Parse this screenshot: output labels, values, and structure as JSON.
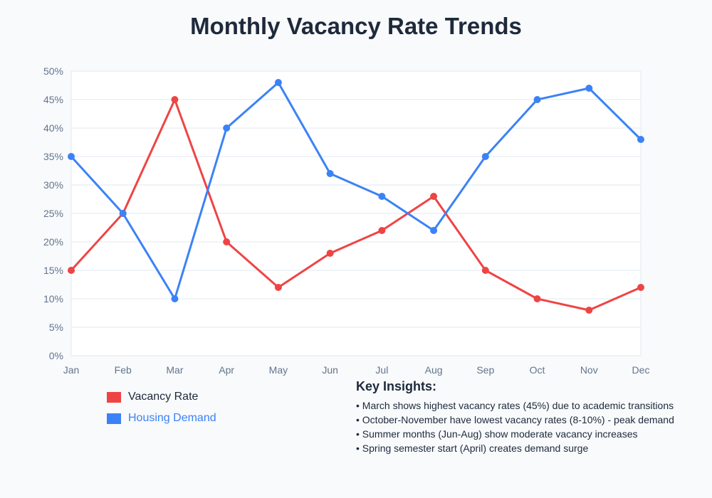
{
  "chart_data": {
    "type": "line",
    "title": "Monthly Vacancy Rate Trends",
    "categories": [
      "Jan",
      "Feb",
      "Mar",
      "Apr",
      "May",
      "Jun",
      "Jul",
      "Aug",
      "Sep",
      "Oct",
      "Nov",
      "Dec"
    ],
    "ylim": [
      0,
      50
    ],
    "yticks": [
      "0%",
      "5%",
      "10%",
      "15%",
      "20%",
      "25%",
      "30%",
      "35%",
      "40%",
      "45%",
      "50%"
    ],
    "grid": true,
    "legend_position": "bottom-left",
    "series": [
      {
        "name": "Vacancy Rate",
        "color": "#ef4444",
        "values": [
          15,
          25,
          45,
          20,
          12,
          18,
          22,
          28,
          15,
          10,
          8,
          12
        ]
      },
      {
        "name": "Housing Demand",
        "color": "#3b82f6",
        "values": [
          35,
          25,
          10,
          40,
          48,
          32,
          28,
          22,
          35,
          45,
          47,
          38
        ]
      }
    ]
  },
  "insights": {
    "heading": "Key Insights:",
    "items": [
      "• March shows highest vacancy rates (45%) due to academic transitions",
      "• October-November have lowest vacancy rates (8-10%) - peak demand",
      "• Summer months (Jun-Aug) show moderate vacancy increases",
      "• Spring semester start (April) creates demand surge"
    ]
  }
}
